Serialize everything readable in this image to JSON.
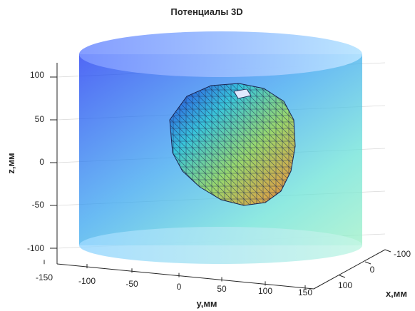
{
  "chart_data": {
    "type": "surface3d",
    "title": "Потенциалы 3D",
    "xlabel": "x,мм",
    "ylabel": "y,мм",
    "zlabel": "z,мм",
    "x_ticks": [
      "-100",
      "0",
      "100"
    ],
    "y_ticks": [
      "-150",
      "-100",
      "-50",
      "0",
      "50",
      "100",
      "150"
    ],
    "z_ticks": [
      "100",
      "50",
      "0",
      "-50",
      "-100"
    ],
    "zlim": [
      -110,
      120
    ],
    "grid": true,
    "objects": [
      {
        "name": "torso",
        "shape": "cylinder",
        "z_range": [
          -105,
          120
        ],
        "colormap": "jet",
        "transparent": true
      },
      {
        "name": "heart",
        "shape": "mesh",
        "colormap": "jet"
      }
    ]
  }
}
